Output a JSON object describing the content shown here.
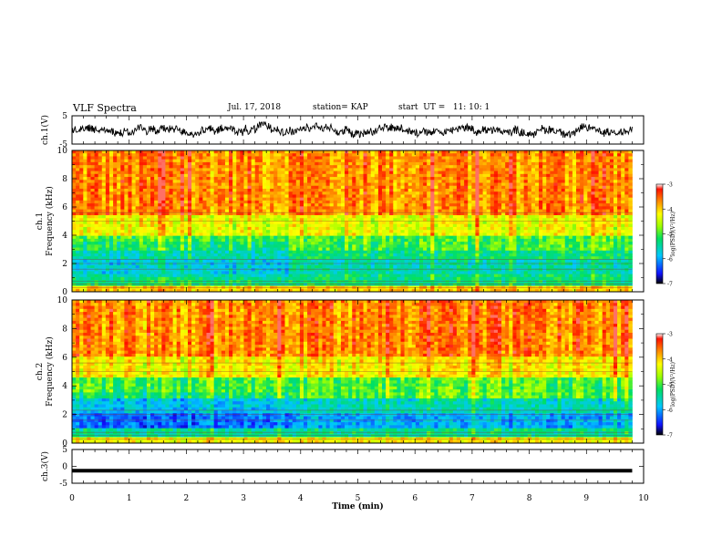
{
  "header": {
    "title": "VLF Spectra",
    "date": "Jul. 17, 2018",
    "station": "station= KAP",
    "start": "start  UT =   11: 10: 1"
  },
  "chart_data": [
    {
      "type": "line",
      "panel": "ch1-waveform",
      "ylabel": "ch.1(V)",
      "ylim": [
        -5,
        5
      ],
      "y_ticks": [
        "5",
        "-5"
      ],
      "xlim": [
        0,
        10
      ],
      "description_values": {
        "amplitude_range_V": [
          -2.5,
          2.5
        ],
        "x_end_min": 9.8
      }
    },
    {
      "type": "heatmap",
      "panel": "ch1-spectrogram",
      "ylabel": "ch.1 Frequency (kHz)",
      "ylim": [
        0,
        10
      ],
      "y_ticks": [
        "0",
        "2",
        "4",
        "6",
        "8",
        "10"
      ],
      "xlim": [
        0,
        10
      ],
      "x_end_min": 9.8,
      "colorbar": {
        "label": "log(PSD)(V²/Hz)",
        "range": [
          -7,
          -3
        ],
        "ticks": [
          "-3",
          "-4",
          "-5",
          "-6",
          "-7"
        ]
      },
      "band_levels_logPSD": [
        {
          "freq_kHz": [
            0,
            0.5
          ],
          "level": -4.0
        },
        {
          "freq_kHz": [
            0.5,
            1.2
          ],
          "level": -5.3
        },
        {
          "freq_kHz": [
            1.2,
            2.3
          ],
          "level": -5.5
        },
        {
          "freq_kHz": [
            2.3,
            3.0
          ],
          "level": -5.3
        },
        {
          "freq_kHz": [
            3.0,
            4.0
          ],
          "level": -5.0
        },
        {
          "freq_kHz": [
            4.0,
            5.5
          ],
          "level": -4.3
        },
        {
          "freq_kHz": [
            5.5,
            10.0
          ],
          "level": -3.7
        }
      ]
    },
    {
      "type": "heatmap",
      "panel": "ch2-spectrogram",
      "ylabel": "ch.2 Frequency (kHz)",
      "ylim": [
        0,
        10
      ],
      "y_ticks": [
        "0",
        "2",
        "4",
        "6",
        "8",
        "10"
      ],
      "xlim": [
        0,
        10
      ],
      "x_end_min": 9.8,
      "colorbar": {
        "label": "log(PSD)(V²/Hz)",
        "range": [
          -7,
          -3
        ],
        "ticks": [
          "-3",
          "-4",
          "-5",
          "-6",
          "-7"
        ]
      },
      "band_levels_logPSD": [
        {
          "freq_kHz": [
            0,
            0.5
          ],
          "level": -4.2
        },
        {
          "freq_kHz": [
            0.5,
            1.0
          ],
          "level": -5.4
        },
        {
          "freq_kHz": [
            1.0,
            2.0
          ],
          "level": -6.0
        },
        {
          "freq_kHz": [
            2.0,
            3.2
          ],
          "level": -5.6
        },
        {
          "freq_kHz": [
            3.2,
            4.5
          ],
          "level": -5.0
        },
        {
          "freq_kHz": [
            4.5,
            6.0
          ],
          "level": -4.2
        },
        {
          "freq_kHz": [
            6.0,
            10.0
          ],
          "level": -3.7
        }
      ]
    },
    {
      "type": "line",
      "panel": "ch3-waveform",
      "ylabel": "ch.3(V)",
      "ylim": [
        -5,
        5
      ],
      "y_ticks": [
        "5",
        "0",
        "-5"
      ],
      "xlim": [
        0,
        10
      ],
      "xlabel": "Time (min)",
      "x_ticks": [
        "0",
        "1",
        "2",
        "3",
        "4",
        "5",
        "6",
        "7",
        "8",
        "9",
        "10"
      ],
      "description_values": {
        "constant_level_V": -1.3,
        "x_end_min": 9.8
      }
    }
  ]
}
